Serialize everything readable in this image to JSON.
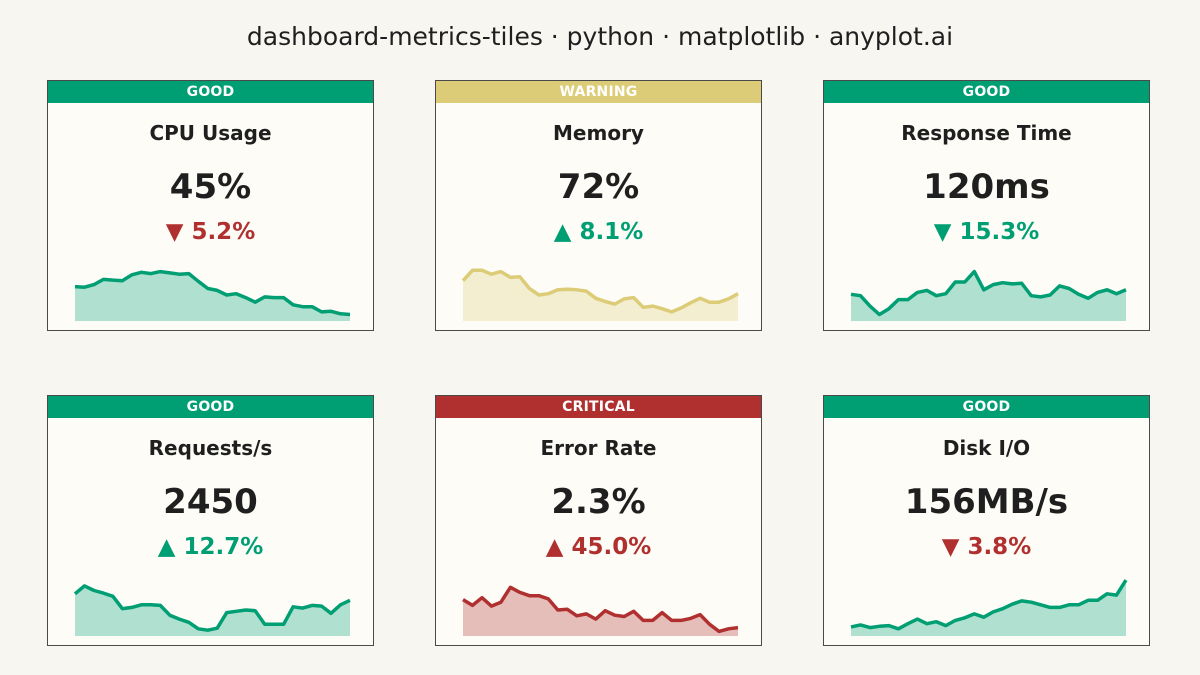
{
  "title": "dashboard-metrics-tiles · python · matplotlib · anyplot.ai",
  "colors": {
    "good": "#009e73",
    "warning": "#ddcc77",
    "critical": "#b03030",
    "up_arrow_good": "#009e73",
    "down_arrow_bad": "#b03030"
  },
  "chart_data": {
    "type": "area",
    "tiles": [
      {
        "name": "CPU Usage",
        "value": "45%",
        "status": "GOOD",
        "change": "▼ 5.2%",
        "change_color": "#b03030",
        "series_color": "#009e73",
        "values": [
          0.53,
          0.52,
          0.56,
          0.64,
          0.63,
          0.62,
          0.71,
          0.75,
          0.73,
          0.76,
          0.74,
          0.72,
          0.73,
          0.61,
          0.5,
          0.47,
          0.4,
          0.42,
          0.36,
          0.29,
          0.37,
          0.36,
          0.36,
          0.25,
          0.22,
          0.22,
          0.14,
          0.15,
          0.11,
          0.1
        ]
      },
      {
        "name": "Memory",
        "value": "72%",
        "status": "WARNING",
        "change": "▲ 8.1%",
        "change_color": "#009e73",
        "series_color": "#ddcc77",
        "values": [
          0.62,
          0.78,
          0.78,
          0.72,
          0.76,
          0.67,
          0.68,
          0.5,
          0.4,
          0.42,
          0.48,
          0.49,
          0.48,
          0.46,
          0.35,
          0.3,
          0.26,
          0.34,
          0.36,
          0.21,
          0.23,
          0.19,
          0.14,
          0.2,
          0.28,
          0.35,
          0.29,
          0.29,
          0.34,
          0.42
        ]
      },
      {
        "name": "Response Time",
        "value": "120ms",
        "status": "GOOD",
        "change": "▼ 15.3%",
        "change_color": "#009e73",
        "series_color": "#009e73",
        "values": [
          0.41,
          0.39,
          0.23,
          0.1,
          0.19,
          0.33,
          0.33,
          0.44,
          0.47,
          0.39,
          0.42,
          0.6,
          0.6,
          0.76,
          0.48,
          0.56,
          0.59,
          0.57,
          0.58,
          0.39,
          0.37,
          0.4,
          0.54,
          0.5,
          0.41,
          0.35,
          0.44,
          0.48,
          0.42,
          0.48
        ]
      },
      {
        "name": "Requests/s",
        "value": "2450",
        "status": "GOOD",
        "change": "▲ 12.7%",
        "change_color": "#009e73",
        "series_color": "#009e73",
        "values": [
          0.65,
          0.77,
          0.7,
          0.66,
          0.61,
          0.42,
          0.44,
          0.48,
          0.48,
          0.47,
          0.32,
          0.26,
          0.21,
          0.11,
          0.09,
          0.12,
          0.36,
          0.38,
          0.4,
          0.39,
          0.18,
          0.18,
          0.18,
          0.45,
          0.43,
          0.47,
          0.46,
          0.35,
          0.48,
          0.55
        ]
      },
      {
        "name": "Error Rate",
        "value": "2.3%",
        "status": "CRITICAL",
        "change": "▲ 45.0%",
        "change_color": "#b03030",
        "series_color": "#b03030",
        "values": [
          0.56,
          0.47,
          0.59,
          0.46,
          0.52,
          0.75,
          0.67,
          0.62,
          0.62,
          0.57,
          0.4,
          0.41,
          0.31,
          0.34,
          0.26,
          0.39,
          0.32,
          0.3,
          0.38,
          0.24,
          0.24,
          0.36,
          0.24,
          0.24,
          0.27,
          0.33,
          0.18,
          0.07,
          0.11,
          0.13
        ]
      },
      {
        "name": "Disk I/O",
        "value": "156MB/s",
        "status": "GOOD",
        "change": "▼ 3.8%",
        "change_color": "#b03030",
        "series_color": "#009e73",
        "values": [
          0.14,
          0.17,
          0.13,
          0.15,
          0.16,
          0.11,
          0.19,
          0.26,
          0.19,
          0.22,
          0.16,
          0.24,
          0.28,
          0.34,
          0.29,
          0.37,
          0.42,
          0.49,
          0.54,
          0.52,
          0.48,
          0.44,
          0.44,
          0.48,
          0.48,
          0.55,
          0.55,
          0.65,
          0.63,
          0.86
        ]
      }
    ]
  }
}
